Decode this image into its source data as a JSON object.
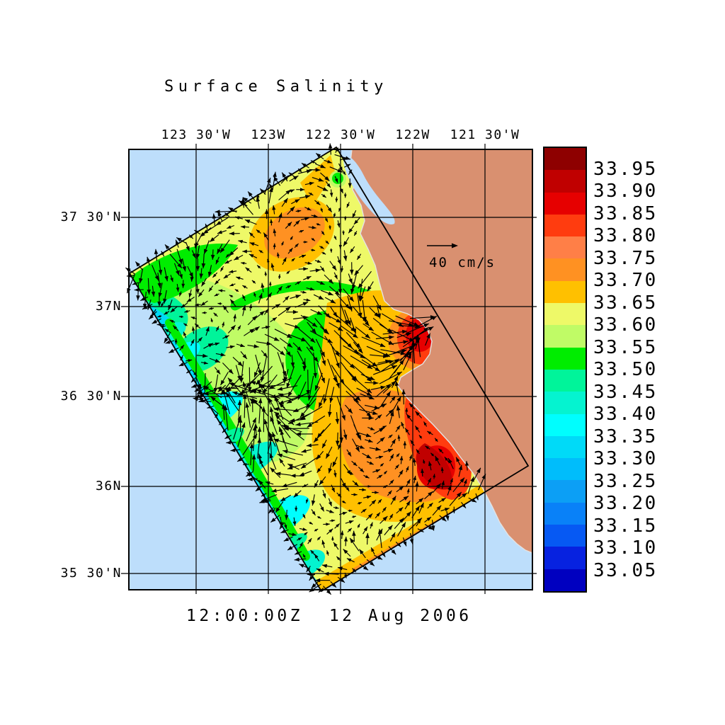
{
  "page": {
    "background": "#ffffff"
  },
  "title": {
    "text": "Surface Salinity"
  },
  "timestamp": {
    "text": "12:00:00Z  12 Aug 2006"
  },
  "axes": {
    "top": {
      "labels": [
        "123 30'W",
        "123W",
        "122 30'W",
        "122W",
        "121 30'W"
      ]
    },
    "left": {
      "labels": [
        "37 30'N",
        "37N",
        "36 30'N",
        "36N",
        "35 30'N"
      ]
    }
  },
  "colorbar": {
    "tick_labels": [
      "33.95",
      "33.90",
      "33.85",
      "33.80",
      "33.75",
      "33.70",
      "33.65",
      "33.60",
      "33.55",
      "33.50",
      "33.45",
      "33.40",
      "33.35",
      "33.30",
      "33.25",
      "33.20",
      "33.15",
      "33.10",
      "33.05"
    ],
    "segment_colors_top_to_bottom": [
      "#8E0000",
      "#C00000",
      "#E60000",
      "#FF3C0F",
      "#FF7F47",
      "#FF9122",
      "#FFC000",
      "#EEF968",
      "#C0FB66",
      "#00ED00",
      "#00F49A",
      "#05F3D0",
      "#00FEFE",
      "#00DAF8",
      "#00BDFB",
      "#0C9FF5",
      "#0981F8",
      "#0659F3",
      "#0722E0",
      "#0000C0"
    ],
    "border_color": "#000000"
  },
  "reference_vector": {
    "label": "40 cm/s",
    "value": 40,
    "units": "cm/s"
  },
  "map": {
    "ocean_color": "#BDDEFB",
    "land_color": "#D99070",
    "grid_color": "#000000",
    "coast_edge_color": "#E3E3E3",
    "vector_color": "#000000",
    "outline_color": "#000000",
    "frame_color": "#000000"
  },
  "chart_data": {
    "type": "heatmap",
    "overlay": "vector_field",
    "title": "Surface Salinity",
    "time_label": "12:00:00Z  12 Aug 2006",
    "x_tick_labels": [
      "123 30'W",
      "123W",
      "122 30'W",
      "122W",
      "121 30'W"
    ],
    "y_tick_labels": [
      "37 30'N",
      "37N",
      "36 30'N",
      "36N",
      "35 30'N"
    ],
    "colorbar_values": [
      33.95,
      33.9,
      33.85,
      33.8,
      33.75,
      33.7,
      33.65,
      33.6,
      33.55,
      33.5,
      33.45,
      33.4,
      33.35,
      33.3,
      33.25,
      33.2,
      33.15,
      33.1,
      33.05
    ],
    "colorbar_range": [
      33.0,
      34.0
    ],
    "colorbar_step": 0.05,
    "colorbar_colors_top_to_bottom": [
      "#8E0000",
      "#C00000",
      "#E60000",
      "#FF3C0F",
      "#FF7F47",
      "#FF9122",
      "#FFC000",
      "#EEF968",
      "#C0FB66",
      "#00ED00",
      "#00F49A",
      "#05F3D0",
      "#00FEFE",
      "#00DAF8",
      "#00BDFB",
      "#0C9FF5",
      "#0981F8",
      "#0659F3",
      "#0722E0",
      "#0000C0"
    ],
    "reference_vector": {
      "label": "40 cm/s",
      "value": 40,
      "units": "cm/s"
    },
    "legend_position": "right",
    "grid": true
  }
}
